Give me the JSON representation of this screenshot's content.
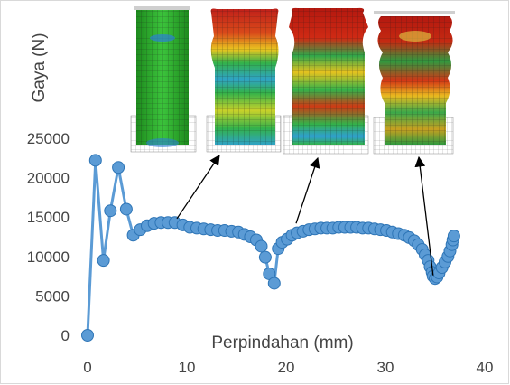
{
  "chart_data": {
    "type": "scatter",
    "title": "",
    "xlabel": "Perpindahan (mm)",
    "ylabel": "Gaya (N)",
    "xlim": [
      0,
      40
    ],
    "ylim": [
      0,
      25000
    ],
    "x_ticks": [
      "0",
      "10",
      "20",
      "30",
      "40"
    ],
    "y_ticks": [
      "0",
      "5000",
      "10000",
      "15000",
      "20000",
      "25000"
    ],
    "grid": false,
    "legend": "none",
    "colors": {
      "series": "#5b9bd5",
      "marker_edge": "#2e75b6",
      "arrow": "#000000"
    },
    "series": [
      {
        "style": "line-with-markers",
        "points": [
          [
            0,
            0
          ],
          [
            0.8,
            22200
          ],
          [
            1.6,
            9500
          ],
          [
            2.3,
            15800
          ],
          [
            3.1,
            21300
          ],
          [
            3.9,
            16000
          ],
          [
            4.6,
            12700
          ],
          [
            5.3,
            13400
          ],
          [
            6.0,
            13900
          ],
          [
            6.7,
            14200
          ],
          [
            7.4,
            14300
          ],
          [
            8.1,
            14300
          ],
          [
            8.8,
            14300
          ],
          [
            9.6,
            14000
          ],
          [
            10.3,
            13700
          ],
          [
            11.0,
            13600
          ],
          [
            11.7,
            13500
          ],
          [
            12.4,
            13400
          ],
          [
            13.1,
            13300
          ],
          [
            13.8,
            13300
          ],
          [
            14.5,
            13200
          ],
          [
            15.2,
            13100
          ],
          [
            15.8,
            12800
          ],
          [
            16.4,
            12500
          ],
          [
            17.0,
            12100
          ],
          [
            17.5,
            11300
          ],
          [
            17.9,
            9900
          ],
          [
            18.3,
            7800
          ],
          [
            18.8,
            6600
          ],
          [
            19.2,
            11000
          ],
          [
            19.6,
            11800
          ],
          [
            20.1,
            12200
          ],
          [
            20.6,
            12700
          ],
          [
            21.1,
            13000
          ],
          [
            21.7,
            13200
          ],
          [
            22.3,
            13400
          ],
          [
            22.9,
            13500
          ],
          [
            23.5,
            13600
          ],
          [
            24.1,
            13600
          ],
          [
            24.7,
            13600
          ],
          [
            25.3,
            13700
          ],
          [
            25.9,
            13700
          ],
          [
            26.5,
            13700
          ],
          [
            27.1,
            13700
          ],
          [
            27.7,
            13600
          ],
          [
            28.3,
            13600
          ],
          [
            28.9,
            13500
          ],
          [
            29.5,
            13400
          ],
          [
            30.1,
            13300
          ],
          [
            30.7,
            13100
          ],
          [
            31.3,
            12900
          ],
          [
            31.9,
            12700
          ],
          [
            32.4,
            12400
          ],
          [
            32.9,
            12000
          ],
          [
            33.3,
            11500
          ],
          [
            33.7,
            10900
          ],
          [
            34.0,
            10200
          ],
          [
            34.3,
            9500
          ],
          [
            34.5,
            8700
          ],
          [
            34.7,
            8000
          ],
          [
            34.8,
            7500
          ],
          [
            35.0,
            7200
          ],
          [
            35.2,
            7400
          ],
          [
            35.4,
            7900
          ],
          [
            35.7,
            8600
          ],
          [
            36.0,
            9300
          ],
          [
            36.3,
            10000
          ],
          [
            36.5,
            10700
          ],
          [
            36.7,
            11500
          ],
          [
            36.8,
            12100
          ],
          [
            36.9,
            12600
          ]
        ]
      }
    ],
    "annotations": [
      {
        "kind": "arrow",
        "from": [
          9.0,
          14800
        ],
        "to": "image-1"
      },
      {
        "kind": "arrow",
        "from": [
          21.0,
          14200
        ],
        "to": "image-2"
      },
      {
        "kind": "arrow",
        "from": [
          34.8,
          7600
        ],
        "to": "image-3"
      }
    ],
    "inset_images": [
      {
        "id": "image-0",
        "description_icon": "crush-tube-fea-stage-0-icon"
      },
      {
        "id": "image-1",
        "description_icon": "crush-tube-fea-stage-1-icon"
      },
      {
        "id": "image-2",
        "description_icon": "crush-tube-fea-stage-2-icon"
      },
      {
        "id": "image-3",
        "description_icon": "crush-tube-fea-stage-3-icon"
      }
    ]
  }
}
